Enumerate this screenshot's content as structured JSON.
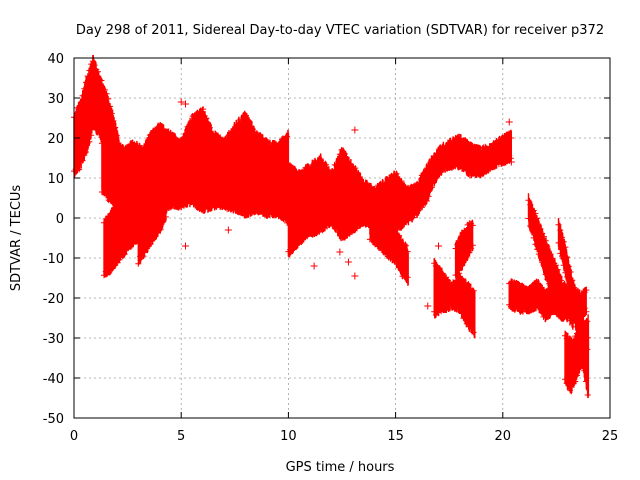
{
  "chart_data": {
    "type": "scatter",
    "title": "Day 298 of 2011, Sidereal Day-to-day VTEC variation (SDTVAR) for receiver p372",
    "xlabel": "GPS time / hours",
    "ylabel": "SDTVAR / TECUs",
    "xlim": [
      0,
      25
    ],
    "ylim": [
      -50,
      40
    ],
    "xticks": [
      0,
      5,
      10,
      15,
      20,
      25
    ],
    "yticks": [
      -50,
      -40,
      -30,
      -20,
      -10,
      0,
      10,
      20,
      30,
      40
    ],
    "grid": true,
    "marker": "+",
    "color": "#ff0000",
    "series": [
      {
        "name": "SDTVAR",
        "bands": [
          {
            "x": [
              0.0,
              0.3,
              0.6,
              0.9,
              1.2,
              1.5,
              1.8,
              2.1,
              2.4
            ],
            "low": [
              12,
              14,
              18,
              24,
              22,
              18,
              12,
              8,
              2
            ],
            "high": [
              24,
              28,
              34,
              39,
              34,
              30,
              25,
              18,
              12
            ]
          },
          {
            "x": [
              1.3,
              1.6,
              2.0,
              2.4,
              2.8,
              3.2,
              3.6,
              4.0,
              4.5,
              5.0,
              5.5,
              6.0,
              6.5,
              7.0,
              7.5,
              8.0,
              8.5,
              9.0,
              9.5,
              10.0
            ],
            "low": [
              8,
              6,
              4,
              2,
              0,
              -2,
              0,
              2,
              4,
              4,
              5,
              3,
              4,
              4,
              3,
              2,
              3,
              2,
              2,
              0
            ],
            "high": [
              18,
              20,
              17,
              16,
              18,
              16,
              20,
              22,
              20,
              18,
              24,
              26,
              20,
              18,
              22,
              25,
              20,
              18,
              17,
              20
            ]
          },
          {
            "x": [
              1.4,
              1.7,
              2.0,
              2.3,
              2.6,
              3.0
            ],
            "low": [
              -13,
              -12,
              -10,
              -8,
              -6,
              -4
            ],
            "high": [
              -2,
              0,
              2,
              4,
              6,
              8
            ]
          },
          {
            "x": [
              3.0,
              3.3,
              3.6,
              4.0,
              4.3
            ],
            "low": [
              -10,
              -8,
              -5,
              -2,
              1
            ],
            "high": [
              -3,
              0,
              3,
              6,
              9
            ]
          },
          {
            "x": [
              10.0,
              10.5,
              11.0,
              11.5,
              12.0,
              12.5,
              13.0,
              13.5,
              14.0,
              14.5,
              15.0,
              15.5
            ],
            "low": [
              -8,
              -5,
              -3,
              -2,
              0,
              -4,
              -2,
              0,
              -1,
              -3,
              -2,
              0
            ],
            "high": [
              12,
              10,
              12,
              14,
              10,
              16,
              12,
              8,
              6,
              8,
              10,
              6
            ]
          },
          {
            "x": [
              13.8,
              14.2,
              14.6,
              15.0,
              15.3,
              15.6
            ],
            "low": [
              -4,
              -6,
              -8,
              -10,
              -13,
              -15
            ],
            "high": [
              2,
              0,
              -2,
              -4,
              -7,
              -9
            ]
          },
          {
            "x": [
              15.5,
              16.0,
              16.5,
              17.0,
              17.5,
              18.0,
              18.5,
              19.0,
              19.5,
              20.0,
              20.4
            ],
            "low": [
              0,
              2,
              6,
              12,
              14,
              14,
              12,
              12,
              14,
              15,
              16
            ],
            "high": [
              6,
              7,
              12,
              16,
              18,
              19,
              17,
              16,
              17,
              19,
              20
            ]
          },
          {
            "x": [
              16.8,
              17.2,
              17.6,
              18.0,
              18.4,
              18.7
            ],
            "low": [
              -23,
              -22,
              -21,
              -22,
              -26,
              -28
            ],
            "high": [
              -12,
              -15,
              -18,
              -16,
              -18,
              -20
            ]
          },
          {
            "x": [
              17.8,
              18.2,
              18.6
            ],
            "low": [
              -14,
              -10,
              -6
            ],
            "high": [
              -8,
              -4,
              -2
            ]
          },
          {
            "x": [
              20.3,
              20.8,
              21.2,
              21.6,
              22.0,
              22.4,
              22.8,
              23.2,
              23.6,
              23.9
            ],
            "low": [
              -21,
              -22,
              -22,
              -21,
              -24,
              -22,
              -24,
              -21,
              -24,
              -22
            ],
            "high": [
              -17,
              -18,
              -19,
              -17,
              -20,
              -16,
              -19,
              -18,
              -20,
              -19
            ]
          },
          {
            "x": [
              21.2,
              21.5,
              21.8,
              22.1,
              22.4,
              22.7,
              23.0,
              23.3
            ],
            "low": [
              0,
              -5,
              -10,
              -15,
              -20,
              -22,
              -24,
              -26
            ],
            "high": [
              4,
              0,
              -4,
              -8,
              -12,
              -16,
              -19,
              -22
            ]
          },
          {
            "x": [
              22.6,
              22.9,
              23.2,
              23.5,
              23.8,
              24.0
            ],
            "low": [
              -6,
              -12,
              -20,
              -30,
              -38,
              -44
            ],
            "high": [
              -2,
              -8,
              -15,
              -22,
              -28,
              -32
            ]
          },
          {
            "x": [
              22.9,
              23.2,
              23.5,
              23.8,
              24.0
            ],
            "low": [
              -40,
              -42,
              -38,
              -34,
              -32
            ],
            "high": [
              -30,
              -32,
              -30,
              -28,
              -26
            ]
          }
        ],
        "outliers": [
          [
            5.0,
            29
          ],
          [
            5.2,
            28.5
          ],
          [
            5.2,
            -7
          ],
          [
            7.2,
            -3
          ],
          [
            11.2,
            -12
          ],
          [
            12.4,
            -8.5
          ],
          [
            12.8,
            -11
          ],
          [
            13.1,
            -14.5
          ],
          [
            13.1,
            22
          ],
          [
            17.0,
            -7
          ],
          [
            16.5,
            -22
          ],
          [
            20.3,
            24
          ],
          [
            20.4,
            14
          ],
          [
            20.2,
            16
          ]
        ]
      }
    ]
  }
}
